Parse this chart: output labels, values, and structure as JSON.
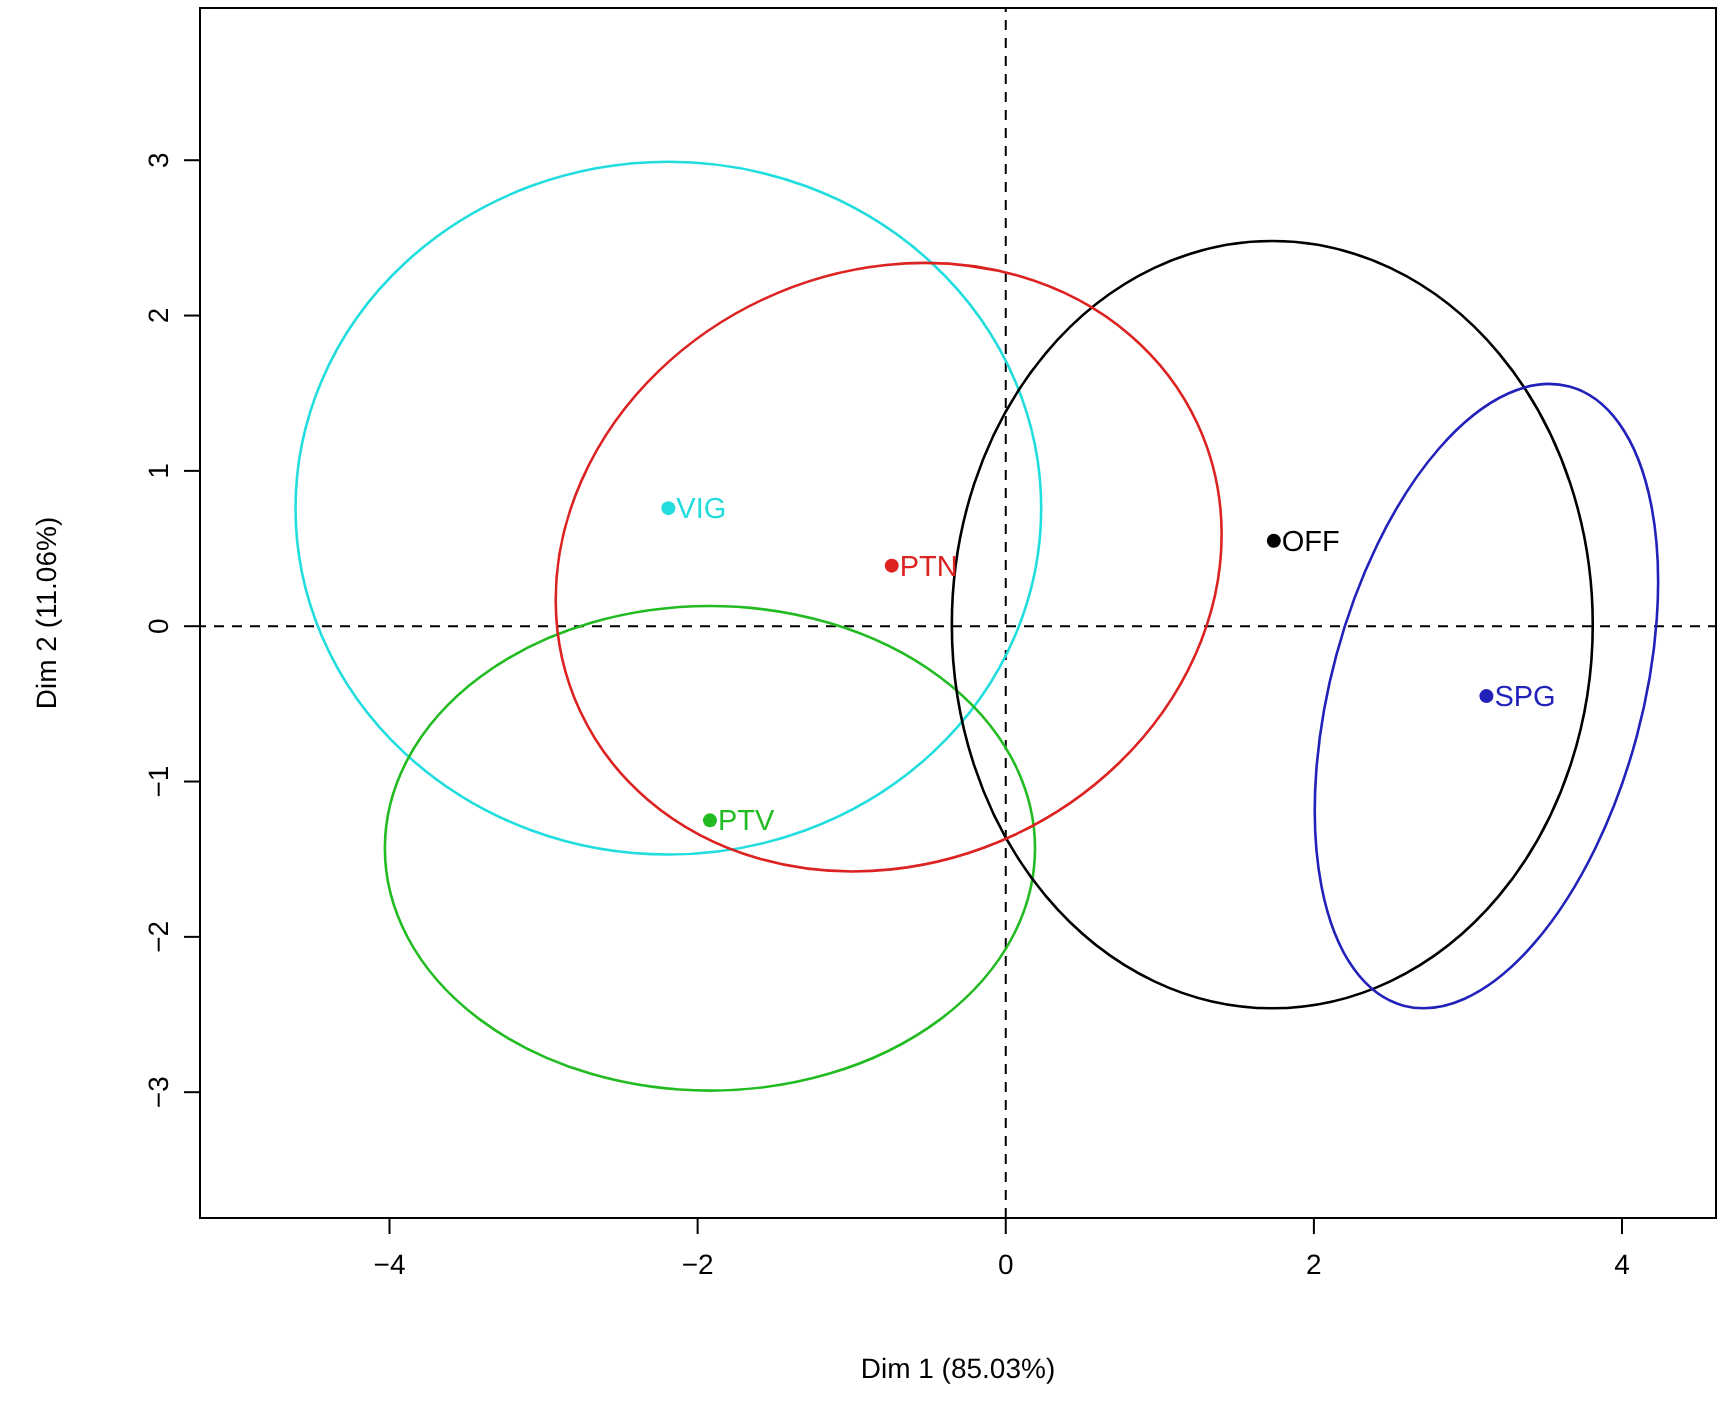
{
  "chart_data": {
    "type": "scatter",
    "xlabel": "Dim 1 (85.03%)",
    "ylabel": "Dim 2 (11.06%)",
    "xlim": [
      -5.23,
      4.61
    ],
    "ylim": [
      -3.81,
      3.98
    ],
    "xticks": [
      {
        "value": -4,
        "label": "−4"
      },
      {
        "value": -2,
        "label": "−2"
      },
      0,
      2,
      4
    ],
    "yticks": [
      {
        "value": -3,
        "label": "−3"
      },
      {
        "value": -2,
        "label": "−2"
      },
      {
        "value": -1,
        "label": "−1"
      },
      0,
      1,
      2,
      3
    ],
    "grid": false,
    "legend": false,
    "marker": "circle",
    "ref_lines": [
      {
        "axis": "x",
        "value": 0,
        "line_style": "dashed",
        "color": "#000000"
      },
      {
        "axis": "y",
        "value": 0,
        "line_style": "dashed",
        "color": "#000000"
      }
    ],
    "series": [
      {
        "name": "VIG",
        "color": "#22dddd",
        "x": [
          -2.19
        ],
        "values": [
          0.76
        ]
      },
      {
        "name": "PTN",
        "color": "#dd2222",
        "x": [
          -0.74
        ],
        "values": [
          0.39
        ]
      },
      {
        "name": "OFF",
        "color": "#000000",
        "x": [
          1.74
        ],
        "values": [
          0.55
        ]
      },
      {
        "name": "SPG",
        "color": "#2222bb",
        "x": [
          3.12
        ],
        "values": [
          -0.45
        ]
      },
      {
        "name": "PTV",
        "color": "#22bb22",
        "x": [
          -1.92
        ],
        "values": [
          -1.25
        ]
      }
    ]
  }
}
